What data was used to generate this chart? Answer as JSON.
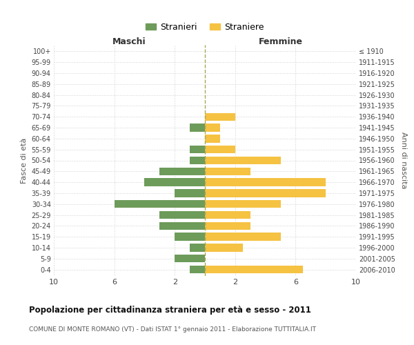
{
  "age_groups": [
    "0-4",
    "5-9",
    "10-14",
    "15-19",
    "20-24",
    "25-29",
    "30-34",
    "35-39",
    "40-44",
    "45-49",
    "50-54",
    "55-59",
    "60-64",
    "65-69",
    "70-74",
    "75-79",
    "80-84",
    "85-89",
    "90-94",
    "95-99",
    "100+"
  ],
  "birth_years": [
    "2006-2010",
    "2001-2005",
    "1996-2000",
    "1991-1995",
    "1986-1990",
    "1981-1985",
    "1976-1980",
    "1971-1975",
    "1966-1970",
    "1961-1965",
    "1956-1960",
    "1951-1955",
    "1946-1950",
    "1941-1945",
    "1936-1940",
    "1931-1935",
    "1926-1930",
    "1921-1925",
    "1916-1920",
    "1911-1915",
    "≤ 1910"
  ],
  "maschi": [
    1,
    2,
    1,
    2,
    3,
    3,
    6,
    2,
    4,
    3,
    1,
    1,
    0,
    1,
    0,
    0,
    0,
    0,
    0,
    0,
    0
  ],
  "femmine": [
    6.5,
    0,
    2.5,
    5,
    3,
    3,
    5,
    8,
    8,
    3,
    5,
    2,
    1,
    1,
    2,
    0,
    0,
    0,
    0,
    0,
    0
  ],
  "maschi_color": "#6d9b5a",
  "femmine_color": "#f5c242",
  "background_color": "#ffffff",
  "grid_color": "#d0d0d0",
  "title": "Popolazione per cittadinanza straniera per età e sesso - 2011",
  "subtitle": "COMUNE DI MONTE ROMANO (VT) - Dati ISTAT 1° gennaio 2011 - Elaborazione TUTTITALIA.IT",
  "legend_maschi": "Stranieri",
  "legend_femmine": "Straniere",
  "xlabel_left": "Maschi",
  "xlabel_right": "Femmine",
  "ylabel_left": "Fasce di età",
  "ylabel_right": "Anni di nascita",
  "xlim": 10,
  "center_line_color": "#aaa855",
  "tick_positions": [
    -10,
    -6,
    -2,
    2,
    6,
    10
  ],
  "tick_labels": [
    "10",
    "6",
    "2",
    "2",
    "6",
    "10"
  ]
}
